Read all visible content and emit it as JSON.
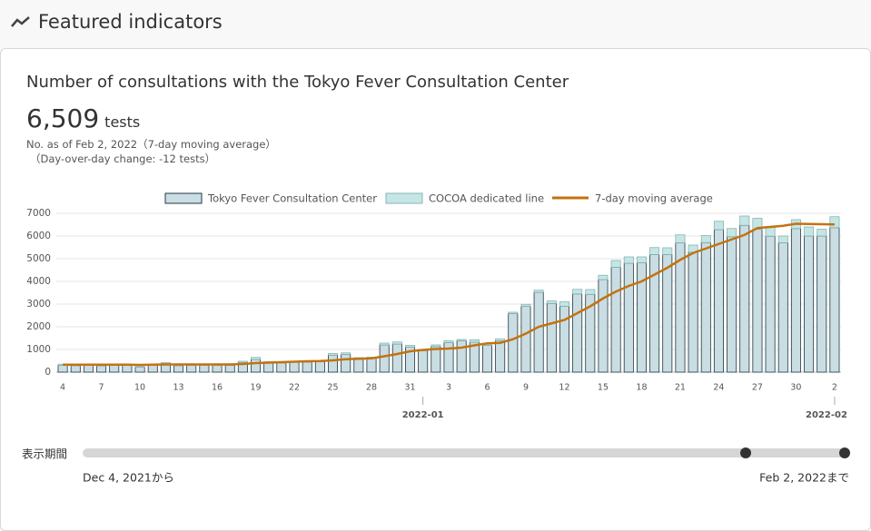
{
  "header": {
    "title": "Featured indicators"
  },
  "card": {
    "title": "Number of consultations with the Tokyo Fever Consultation Center",
    "headline_value": "6,509",
    "headline_unit": "tests",
    "note": "No. as of Feb 2, 2022（7-day moving average）",
    "change": "（Day-over-day change: -12 tests）"
  },
  "chart_data": {
    "type": "bar",
    "stacked": true,
    "categories": [
      "4",
      null,
      null,
      "7",
      null,
      null,
      "10",
      null,
      null,
      "13",
      null,
      null,
      "16",
      null,
      null,
      "19",
      null,
      null,
      "22",
      null,
      null,
      "25",
      null,
      null,
      "28",
      null,
      null,
      "31",
      null,
      null,
      "3",
      null,
      null,
      "6",
      null,
      null,
      "9",
      null,
      null,
      "12",
      null,
      null,
      "15",
      null,
      null,
      "18",
      null,
      null,
      "21",
      null,
      null,
      "24",
      null,
      null,
      "27",
      null,
      null,
      "30",
      null,
      null,
      "2"
    ],
    "x_group_labels": [
      {
        "label": "2022-01",
        "at": 28
      },
      {
        "label": "2022-02",
        "at": 60
      }
    ],
    "series": [
      {
        "name": "Tokyo Fever Consultation Center",
        "type": "bar",
        "color": "#c9dde3",
        "stroke": "#1f3a40",
        "values": [
          300,
          290,
          300,
          280,
          300,
          300,
          230,
          310,
          380,
          290,
          300,
          310,
          300,
          300,
          430,
          560,
          420,
          410,
          440,
          450,
          460,
          750,
          780,
          600,
          620,
          1200,
          1240,
          1100,
          950,
          1130,
          1300,
          1380,
          1320,
          1180,
          1380,
          2580,
          2900,
          3520,
          3030,
          2900,
          3450,
          3430,
          4080,
          4620,
          4800,
          4820,
          5180,
          5180,
          5700,
          5290,
          5710,
          6280,
          5970,
          6470,
          6300,
          5990,
          5700,
          6330,
          6000,
          6000,
          6370
        ]
      },
      {
        "name": "COCOA dedicated line",
        "type": "bar",
        "color": "#c6e5e5",
        "stroke": "#86b5b5",
        "values": [
          50,
          40,
          30,
          40,
          30,
          30,
          20,
          40,
          40,
          30,
          30,
          30,
          30,
          30,
          50,
          90,
          40,
          30,
          40,
          30,
          40,
          70,
          70,
          40,
          40,
          80,
          90,
          80,
          50,
          70,
          80,
          60,
          110,
          50,
          90,
          60,
          90,
          90,
          110,
          200,
          200,
          210,
          190,
          300,
          280,
          260,
          310,
          300,
          350,
          310,
          310,
          370,
          360,
          410,
          480,
          390,
          300,
          390,
          400,
          300,
          480
        ]
      },
      {
        "name": "7-day moving average",
        "type": "line",
        "color": "#c4720f",
        "values": [
          330,
          330,
          330,
          330,
          330,
          330,
          320,
          330,
          340,
          340,
          340,
          340,
          340,
          340,
          360,
          400,
          420,
          440,
          460,
          480,
          490,
          520,
          570,
          590,
          610,
          700,
          800,
          920,
          980,
          1020,
          1040,
          1080,
          1180,
          1270,
          1290,
          1450,
          1700,
          2000,
          2150,
          2300,
          2600,
          2900,
          3250,
          3550,
          3800,
          4000,
          4300,
          4600,
          4950,
          5250,
          5450,
          5650,
          5850,
          6050,
          6350,
          6400,
          6450,
          6540,
          6530,
          6520,
          6509
        ]
      }
    ],
    "ylim": [
      0,
      7000
    ],
    "yticks": [
      0,
      1000,
      2000,
      3000,
      4000,
      5000,
      6000,
      7000
    ],
    "grid": true
  },
  "slider": {
    "label": "表示期間",
    "start": "Dec 4, 2021から",
    "end": "Feb 2, 2022まで"
  }
}
